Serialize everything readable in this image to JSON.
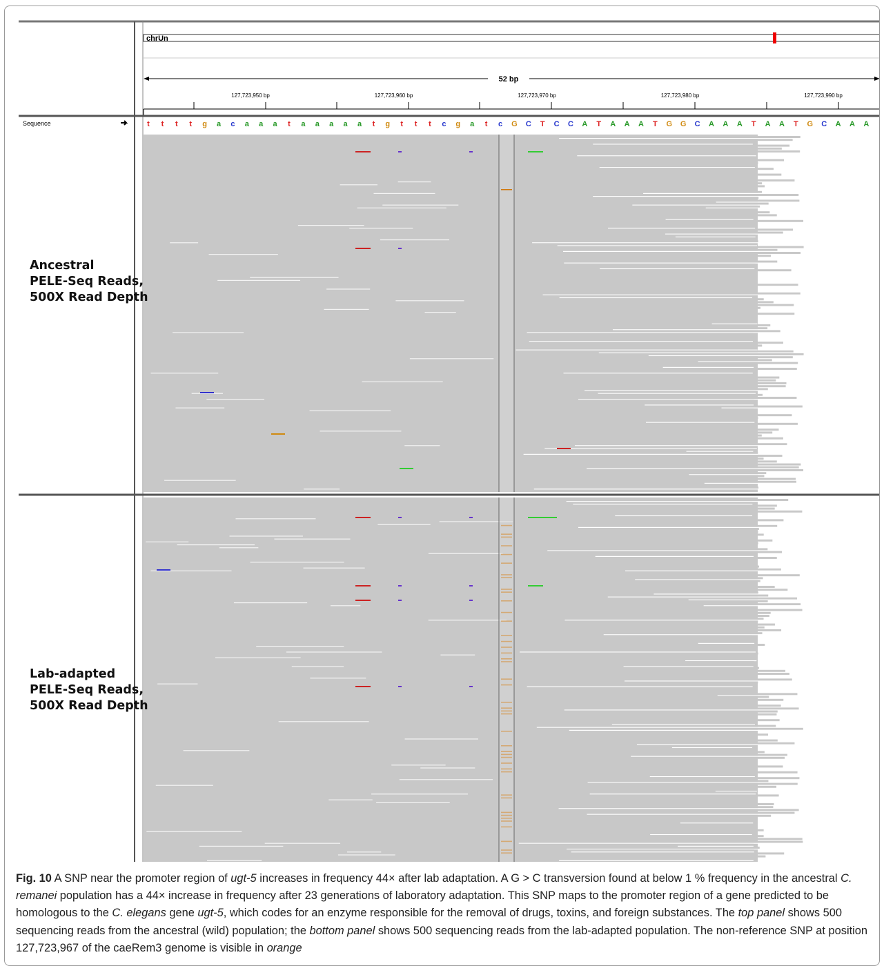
{
  "header": {
    "chromosome": "chrUn",
    "span": "52 bp",
    "tick_labels": [
      "127,723,950 bp",
      "127,723,960 bp",
      "127,723,970 bp",
      "127,723,980 bp",
      "127,723,990 bp"
    ]
  },
  "sequence": {
    "label": "Sequence",
    "bases": [
      "t",
      "t",
      "t",
      "t",
      "g",
      "a",
      "c",
      "a",
      "a",
      "a",
      "t",
      "a",
      "a",
      "a",
      "a",
      "a",
      "t",
      "g",
      "t",
      "t",
      "t",
      "c",
      "g",
      "a",
      "t",
      "c",
      "G",
      "C",
      "T",
      "C",
      "C",
      "A",
      "T",
      "A",
      "A",
      "A",
      "T",
      "G",
      "G",
      "C",
      "A",
      "A",
      "A",
      "T",
      "A",
      "A",
      "T",
      "G",
      "C",
      "A",
      "A",
      "A"
    ]
  },
  "panels": [
    {
      "label": [
        "Ancestral",
        "PELE-Seq Reads,",
        "500X Read Depth"
      ]
    },
    {
      "label": [
        "Lab-adapted",
        "PELE-Seq Reads,",
        "500X Read Depth"
      ]
    }
  ],
  "caption": {
    "label": "Fig. 10",
    "parts": [
      " A SNP near the promoter region of ",
      "ugt-5",
      " increases in frequency 44× after lab adaptation. A G > C transversion found at below 1 % frequency in the ancestral ",
      "C. remanei",
      " population has a 44× increase in frequency after 23 generations of laboratory adaptation. This SNP maps to the promoter region of a gene predicted to be homologous to the ",
      "C. elegans",
      " gene ",
      "ugt-5",
      ", which codes for an enzyme responsible for the removal of drugs, toxins, and foreign substances. The ",
      "top panel",
      " shows 500 sequencing reads from the ancestral (wild) population; the ",
      "bottom panel",
      " shows 500 sequencing reads from the lab-adapted population. The non-reference SNP at position 127,723,967 of the caeRem3 genome is visible in ",
      "orange"
    ]
  }
}
